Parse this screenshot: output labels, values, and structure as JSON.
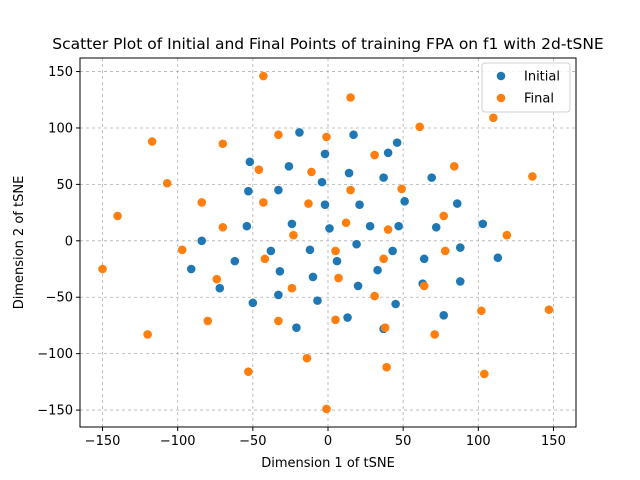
{
  "chart_data": {
    "type": "scatter",
    "title": "Scatter Plot of Initial and Final Points of training FPA on f1 with 2d-tSNE",
    "xlabel": "Dimension 1 of tSNE",
    "ylabel": "Dimension 2 of tSNE",
    "xlim": [
      -165,
      165
    ],
    "ylim": [
      -165,
      162
    ],
    "xticks": [
      -150,
      -100,
      -50,
      0,
      50,
      100,
      150
    ],
    "yticks": [
      -150,
      -100,
      -50,
      0,
      50,
      100,
      150
    ],
    "xtick_labels": [
      "−150",
      "−100",
      "−50",
      "0",
      "50",
      "100",
      "150"
    ],
    "ytick_labels": [
      "−150",
      "−100",
      "−50",
      "0",
      "50",
      "100",
      "150"
    ],
    "grid": true,
    "legend_position": "top-right",
    "series": [
      {
        "name": "Initial",
        "color": "#1f77b4",
        "points": [
          [
            -19,
            96
          ],
          [
            17,
            94
          ],
          [
            46,
            87
          ],
          [
            -2,
            77
          ],
          [
            40,
            78
          ],
          [
            -52,
            70
          ],
          [
            -26,
            66
          ],
          [
            14,
            60
          ],
          [
            37,
            56
          ],
          [
            69,
            56
          ],
          [
            -4,
            52
          ],
          [
            -33,
            45
          ],
          [
            -53,
            44
          ],
          [
            51,
            35
          ],
          [
            86,
            33
          ],
          [
            -2,
            32
          ],
          [
            21,
            32
          ],
          [
            -24,
            15
          ],
          [
            -54,
            13
          ],
          [
            28,
            13
          ],
          [
            47,
            13
          ],
          [
            72,
            12
          ],
          [
            103,
            15
          ],
          [
            1,
            11
          ],
          [
            -84,
            0
          ],
          [
            19,
            -3
          ],
          [
            88,
            -6
          ],
          [
            -38,
            -9
          ],
          [
            -12,
            -8
          ],
          [
            43,
            -9
          ],
          [
            -62,
            -18
          ],
          [
            6,
            -18
          ],
          [
            64,
            -16
          ],
          [
            113,
            -15
          ],
          [
            -91,
            -25
          ],
          [
            -32,
            -27
          ],
          [
            33,
            -26
          ],
          [
            -10,
            -32
          ],
          [
            88,
            -36
          ],
          [
            -72,
            -42
          ],
          [
            20,
            -40
          ],
          [
            63,
            -38
          ],
          [
            -33,
            -48
          ],
          [
            -7,
            -53
          ],
          [
            -50,
            -55
          ],
          [
            45,
            -56
          ],
          [
            13,
            -68
          ],
          [
            77,
            -66
          ],
          [
            -21,
            -77
          ],
          [
            37,
            -78
          ]
        ]
      },
      {
        "name": "Final",
        "color": "#ff7f0e",
        "points": [
          [
            -43,
            146
          ],
          [
            15,
            127
          ],
          [
            110,
            109
          ],
          [
            61,
            101
          ],
          [
            -33,
            94
          ],
          [
            -1,
            92
          ],
          [
            -117,
            88
          ],
          [
            -70,
            86
          ],
          [
            31,
            76
          ],
          [
            -46,
            63
          ],
          [
            -11,
            61
          ],
          [
            84,
            66
          ],
          [
            136,
            57
          ],
          [
            -107,
            51
          ],
          [
            15,
            45
          ],
          [
            49,
            46
          ],
          [
            -84,
            34
          ],
          [
            -43,
            34
          ],
          [
            -13,
            33
          ],
          [
            77,
            22
          ],
          [
            -140,
            22
          ],
          [
            12,
            16
          ],
          [
            -70,
            12
          ],
          [
            40,
            10
          ],
          [
            -23,
            5
          ],
          [
            119,
            5
          ],
          [
            -97,
            -8
          ],
          [
            5,
            -9
          ],
          [
            78,
            -9
          ],
          [
            -42,
            -16
          ],
          [
            37,
            -16
          ],
          [
            -150,
            -25
          ],
          [
            7,
            -33
          ],
          [
            -74,
            -34
          ],
          [
            -24,
            -42
          ],
          [
            64,
            -40
          ],
          [
            31,
            -49
          ],
          [
            102,
            -62
          ],
          [
            147,
            -61
          ],
          [
            -80,
            -71
          ],
          [
            -33,
            -71
          ],
          [
            5,
            -70
          ],
          [
            38,
            -77
          ],
          [
            -120,
            -83
          ],
          [
            71,
            -83
          ],
          [
            -14,
            -104
          ],
          [
            39,
            -112
          ],
          [
            -53,
            -116
          ],
          [
            104,
            -118
          ],
          [
            -1,
            -149
          ]
        ]
      }
    ]
  }
}
